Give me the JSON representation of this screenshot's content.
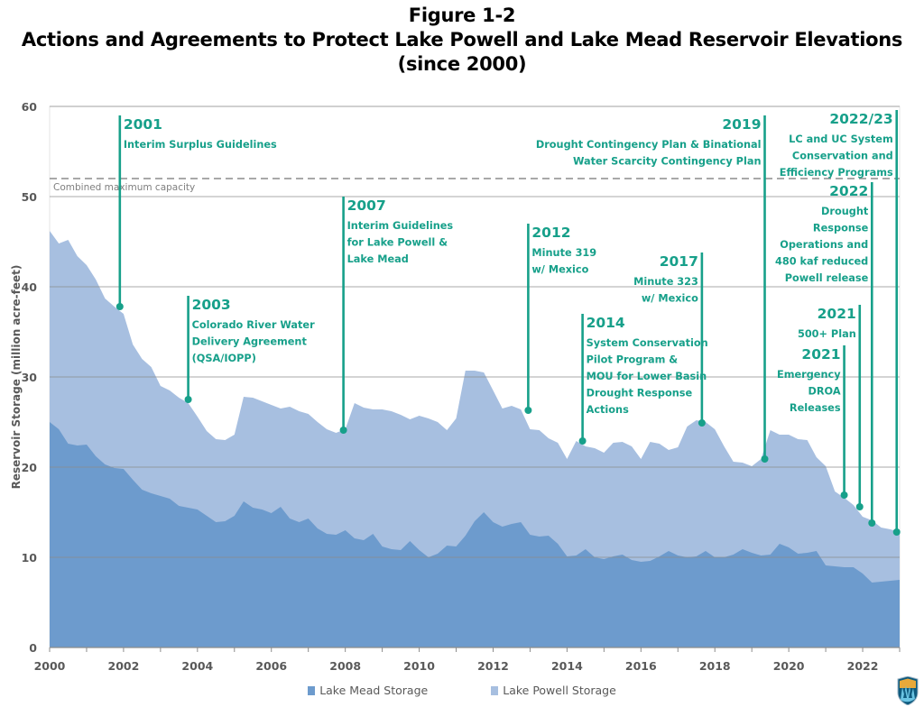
{
  "title": {
    "line1": "Figure 1-2",
    "line2": "Actions and Agreements to Protect Lake Powell and Lake Mead Reservoir Elevations",
    "line3": "(since 2000)"
  },
  "colors": {
    "mead": "#6D9BCD",
    "powell": "#A7BFE0",
    "annotation": "#17A08A",
    "gridline": "#8c8c8c",
    "capacity_line": "#8c8c8c"
  },
  "legend": [
    {
      "label": "Lake Mead Storage",
      "color": "#6D9BCD"
    },
    {
      "label": "Lake Powell Storage",
      "color": "#A7BFE0"
    }
  ],
  "logo": {
    "icon": "bureau-of-reclamation-shield-icon"
  },
  "chart_data": {
    "type": "area",
    "stacked": true,
    "title": "Actions and Agreements to Protect Lake Powell and Lake Mead Reservoir Elevations (since 2000)",
    "xlabel": "",
    "ylabel": "Reservoir Storage (million acre-feet)",
    "xlim": [
      2000,
      2023
    ],
    "ylim": [
      0,
      60
    ],
    "xticks": [
      2000,
      2002,
      2004,
      2006,
      2008,
      2010,
      2012,
      2014,
      2016,
      2018,
      2020,
      2022
    ],
    "yticks": [
      0,
      10,
      20,
      30,
      40,
      50,
      60
    ],
    "grid": true,
    "legend_position": "bottom",
    "reference_line": {
      "label": "Combined maximum capacity",
      "value": 52,
      "style": "dashed"
    },
    "x": [
      2000.0,
      2000.25,
      2000.5,
      2000.75,
      2001.0,
      2001.25,
      2001.5,
      2001.75,
      2002.0,
      2002.25,
      2002.5,
      2002.75,
      2003.0,
      2003.25,
      2003.5,
      2003.75,
      2004.0,
      2004.25,
      2004.5,
      2004.75,
      2005.0,
      2005.25,
      2005.5,
      2005.75,
      2006.0,
      2006.25,
      2006.5,
      2006.75,
      2007.0,
      2007.25,
      2007.5,
      2007.75,
      2008.0,
      2008.25,
      2008.5,
      2008.75,
      2009.0,
      2009.25,
      2009.5,
      2009.75,
      2010.0,
      2010.25,
      2010.5,
      2010.75,
      2011.0,
      2011.25,
      2011.5,
      2011.75,
      2012.0,
      2012.25,
      2012.5,
      2012.75,
      2013.0,
      2013.25,
      2013.5,
      2013.75,
      2014.0,
      2014.25,
      2014.5,
      2014.75,
      2015.0,
      2015.25,
      2015.5,
      2015.75,
      2016.0,
      2016.25,
      2016.5,
      2016.75,
      2017.0,
      2017.25,
      2017.5,
      2017.75,
      2018.0,
      2018.25,
      2018.5,
      2018.75,
      2019.0,
      2019.25,
      2019.5,
      2019.75,
      2020.0,
      2020.25,
      2020.5,
      2020.75,
      2021.0,
      2021.25,
      2021.5,
      2021.75,
      2022.0,
      2022.25,
      2022.5,
      2022.75,
      2023.0
    ],
    "series": [
      {
        "name": "Lake Mead Storage",
        "values": [
          25.0,
          24.2,
          22.6,
          22.4,
          22.5,
          21.2,
          20.3,
          19.9,
          19.8,
          18.6,
          17.5,
          17.1,
          16.8,
          16.5,
          15.7,
          15.5,
          15.3,
          14.6,
          13.9,
          14.0,
          14.6,
          16.2,
          15.5,
          15.3,
          14.9,
          15.6,
          14.3,
          13.9,
          14.3,
          13.2,
          12.6,
          12.5,
          13.0,
          12.1,
          11.9,
          12.6,
          11.2,
          10.9,
          10.8,
          11.8,
          10.8,
          10.0,
          10.4,
          11.3,
          11.2,
          12.4,
          14.0,
          15.0,
          13.9,
          13.4,
          13.7,
          13.9,
          12.5,
          12.3,
          12.4,
          11.5,
          10.1,
          10.2,
          10.9,
          10.0,
          9.8,
          10.1,
          10.3,
          9.7,
          9.5,
          9.6,
          10.1,
          10.7,
          10.2,
          10.0,
          10.1,
          10.7,
          10.0,
          10.0,
          10.3,
          10.9,
          10.5,
          10.2,
          10.3,
          11.5,
          11.1,
          10.4,
          10.5,
          10.7,
          9.1,
          9.0,
          8.9,
          8.9,
          8.2,
          7.2,
          7.3,
          7.4,
          7.5
        ]
      },
      {
        "name": "Lake Powell Storage",
        "values": [
          21.2,
          20.6,
          22.6,
          21.0,
          19.9,
          19.6,
          18.4,
          17.9,
          17.2,
          15.0,
          14.5,
          14.0,
          12.2,
          12.0,
          12.0,
          11.6,
          10.3,
          9.4,
          9.2,
          9.0,
          9.0,
          11.6,
          12.2,
          12.0,
          12.0,
          10.9,
          12.4,
          12.3,
          11.6,
          11.8,
          11.6,
          11.3,
          11.2,
          15.0,
          14.7,
          13.8,
          15.2,
          15.3,
          15.0,
          13.5,
          14.9,
          15.4,
          14.6,
          12.8,
          14.2,
          18.3,
          16.7,
          15.5,
          14.6,
          13.1,
          13.1,
          12.5,
          11.7,
          11.8,
          10.8,
          11.2,
          10.8,
          12.7,
          11.4,
          12.1,
          11.8,
          12.6,
          12.5,
          12.6,
          11.4,
          13.2,
          12.5,
          11.2,
          12.0,
          14.5,
          15.1,
          14.3,
          14.2,
          12.3,
          10.3,
          9.6,
          9.6,
          10.7,
          13.8,
          12.1,
          12.5,
          12.7,
          12.5,
          10.4,
          11.0,
          8.3,
          7.7,
          6.9,
          6.3,
          6.9,
          6.0,
          5.7,
          5.3
        ]
      }
    ],
    "annotations": [
      {
        "year_label": "2001",
        "lines": [
          "Interim Surplus Guidelines"
        ],
        "x": 2001.9,
        "marker_y": 37.8,
        "top_y": 59.0,
        "align": "left"
      },
      {
        "year_label": "2003",
        "lines": [
          "Colorado River Water",
          "Delivery Agreement",
          "(QSA/IOPP)"
        ],
        "x": 2003.75,
        "marker_y": 27.5,
        "top_y": 39.0,
        "align": "left"
      },
      {
        "year_label": "2007",
        "lines": [
          "Interim Guidelines",
          "for Lake Powell &",
          "Lake Mead"
        ],
        "x": 2007.95,
        "marker_y": 24.1,
        "top_y": 50.0,
        "align": "left"
      },
      {
        "year_label": "2012",
        "lines": [
          "Minute 319",
          "w/ Mexico"
        ],
        "x": 2012.95,
        "marker_y": 26.3,
        "top_y": 47.0,
        "align": "left"
      },
      {
        "year_label": "2014",
        "lines": [
          "System Conservation",
          "Pilot Program &",
          "MOU for Lower Basin",
          "Drought Response",
          "Actions"
        ],
        "x": 2014.42,
        "marker_y": 22.9,
        "top_y": 37.0,
        "align": "left"
      },
      {
        "year_label": "2017",
        "lines": [
          "Minute 323",
          "w/ Mexico"
        ],
        "x": 2017.65,
        "marker_y": 24.9,
        "top_y": 43.8,
        "align": "right"
      },
      {
        "year_label": "2019",
        "lines": [
          "Drought Contingency Plan & Binational",
          "Water Scarcity Contingency Plan"
        ],
        "x": 2019.35,
        "marker_y": 20.9,
        "top_y": 59.0,
        "align": "right"
      },
      {
        "year_label": "2021",
        "lines": [
          "Emergency",
          "DROA",
          "Releases"
        ],
        "x": 2021.5,
        "marker_y": 16.9,
        "top_y": 33.5,
        "align": "right"
      },
      {
        "year_label": "2021",
        "lines": [
          "500+ Plan"
        ],
        "x": 2021.92,
        "marker_y": 15.6,
        "top_y": 38.0,
        "align": "right"
      },
      {
        "year_label": "2022",
        "lines": [
          "Drought",
          "Response",
          "Operations and",
          "480 kaf reduced",
          "Powell release"
        ],
        "x": 2022.25,
        "marker_y": 13.8,
        "top_y": 51.6,
        "align": "right"
      },
      {
        "year_label": "2022/23",
        "lines": [
          "LC and UC System",
          "Conservation and",
          "Efficiency Programs"
        ],
        "x": 2022.92,
        "marker_y": 12.8,
        "top_y": 59.6,
        "align": "right"
      }
    ]
  }
}
